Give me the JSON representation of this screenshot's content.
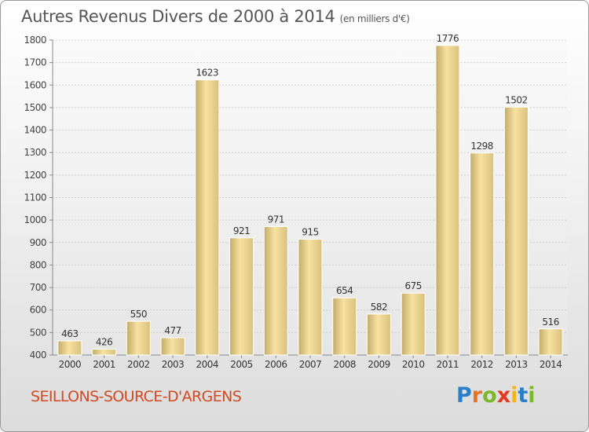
{
  "title": "Autres Revenus Divers de 2000 à 2014",
  "subtitle": "(en milliers d'€)",
  "commune": "SEILLONS-SOURCE-D'ARGENS",
  "logo": {
    "letters": [
      "P",
      "r",
      "o",
      "x",
      "i",
      "t",
      "i"
    ],
    "colors": [
      "#2b7fc9",
      "#e8701e",
      "#7bb82a",
      "#e23a25",
      "#f2b41c",
      "#2b7fc9",
      "#7bb82a"
    ]
  },
  "colors": {
    "bar_light": "#f7e3a6",
    "bar_dark": "#c8b06c",
    "title": "#555555",
    "commune": "#d14a22"
  },
  "chart_data": {
    "type": "bar",
    "title": "Autres Revenus Divers de 2000 à 2014",
    "subtitle": "(en milliers d'€)",
    "categories": [
      "2000",
      "2001",
      "2002",
      "2003",
      "2004",
      "2005",
      "2006",
      "2007",
      "2008",
      "2009",
      "2010",
      "2011",
      "2012",
      "2013",
      "2014"
    ],
    "values": [
      463,
      426,
      550,
      477,
      1623,
      921,
      971,
      915,
      654,
      582,
      675,
      1776,
      1298,
      1502,
      516
    ],
    "ylim": [
      400,
      1800
    ],
    "yticks": [
      400,
      500,
      600,
      700,
      800,
      900,
      1000,
      1100,
      1200,
      1300,
      1400,
      1500,
      1600,
      1700,
      1800
    ],
    "grid": true,
    "legend": "none"
  }
}
